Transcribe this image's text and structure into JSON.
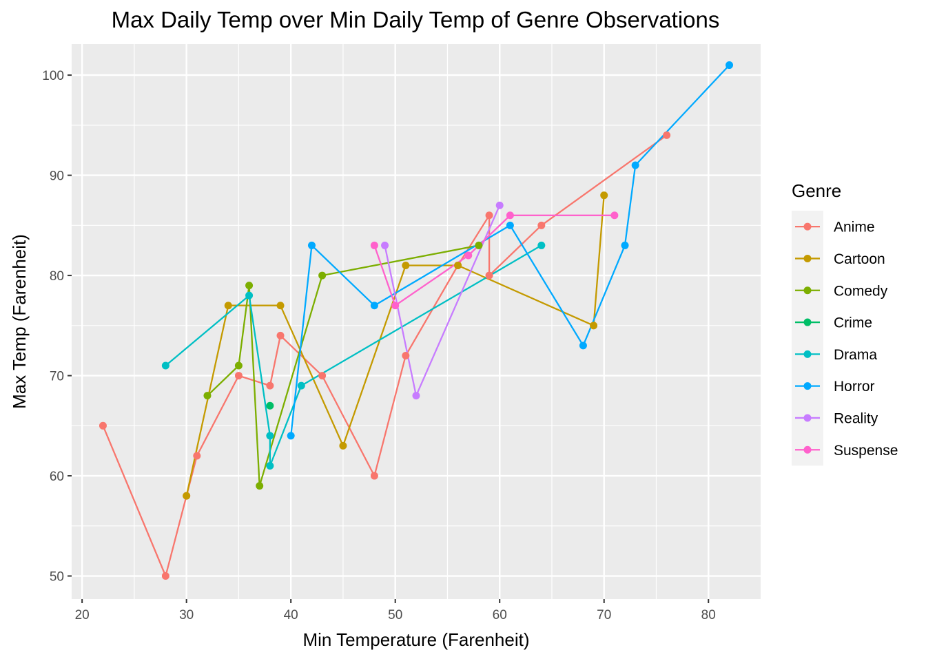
{
  "chart_data": {
    "type": "line",
    "title": "Max Daily Temp over Min Daily Temp of Genre Observations",
    "xlabel": "Min Temperature (Farenheit)",
    "ylabel": "Max Temp (Farenheit)",
    "xlim": [
      19.0,
      85.0
    ],
    "ylim": [
      47.7,
      103.1
    ],
    "x_ticks": [
      20,
      30,
      40,
      50,
      60,
      70,
      80
    ],
    "y_ticks": [
      50,
      60,
      70,
      80,
      90,
      100
    ],
    "grid": true,
    "legend_title": "Genre",
    "legend_position": "right",
    "colors": {
      "panel_background": "#ebebeb",
      "grid_line": "#ffffff",
      "tick_label": "#4d4d4d"
    },
    "series": [
      {
        "name": "Anime",
        "color": "#F8766D",
        "x": [
          22,
          28,
          30,
          31,
          35,
          38,
          39,
          43,
          48,
          51,
          56,
          59,
          59,
          64,
          76
        ],
        "y": [
          65,
          50,
          58,
          62,
          70,
          69,
          74,
          70,
          60,
          72,
          81,
          86,
          80,
          85,
          94
        ]
      },
      {
        "name": "Cartoon",
        "color": "#C49A00",
        "x": [
          30,
          34,
          39,
          45,
          51,
          56,
          69,
          70
        ],
        "y": [
          58,
          77,
          77,
          63,
          81,
          81,
          75,
          88
        ]
      },
      {
        "name": "Comedy",
        "color": "#7CAE00",
        "x": [
          32,
          35,
          36,
          37,
          43,
          58
        ],
        "y": [
          68,
          71,
          79,
          59,
          80,
          83
        ]
      },
      {
        "name": "Crime",
        "color": "#00BE67",
        "x": [
          38
        ],
        "y": [
          67
        ]
      },
      {
        "name": "Drama",
        "color": "#00BFC4",
        "x": [
          28,
          36,
          38,
          38,
          41,
          64
        ],
        "y": [
          71,
          78,
          64,
          61,
          69,
          83
        ]
      },
      {
        "name": "Horror",
        "color": "#00A9FF",
        "x": [
          40,
          42,
          48,
          61,
          68,
          72,
          73,
          82
        ],
        "y": [
          64,
          83,
          77,
          85,
          73,
          83,
          91,
          101
        ]
      },
      {
        "name": "Reality",
        "color": "#C77CFF",
        "x": [
          49,
          52,
          60
        ],
        "y": [
          83,
          68,
          87
        ]
      },
      {
        "name": "Suspense",
        "color": "#FF61CC",
        "x": [
          48,
          50,
          57,
          61,
          71
        ],
        "y": [
          83,
          77,
          82,
          86,
          86
        ]
      }
    ]
  }
}
